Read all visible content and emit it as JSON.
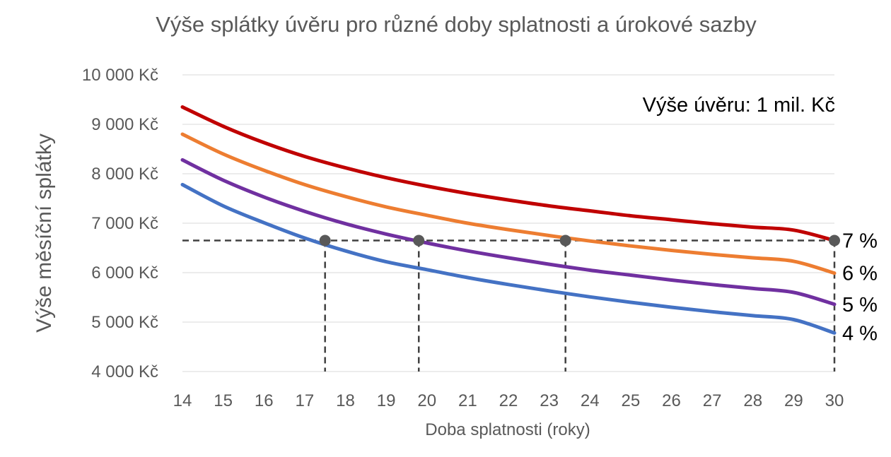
{
  "chart_data": {
    "type": "line",
    "title": "Výše splátky úvěru pro různé doby splatnosti a úrokové sazby",
    "xlabel": "Doba splatnosti (roky)",
    "ylabel": "Výše měsíční splátky",
    "xlim": [
      14,
      30
    ],
    "ylim": [
      4000,
      10000
    ],
    "x_ticks": [
      "14",
      "15",
      "16",
      "17",
      "18",
      "19",
      "20",
      "21",
      "22",
      "23",
      "24",
      "25",
      "26",
      "27",
      "28",
      "29",
      "30"
    ],
    "y_ticks": [
      "4 000 Kč",
      "5 000 Kč",
      "6 000 Kč",
      "7 000 Kč",
      "8 000 Kč",
      "9 000 Kč",
      "10 000 Kč"
    ],
    "grid": true,
    "annotation": "Výše úvěru: 1 mil. Kč",
    "x": [
      14,
      15,
      16,
      17,
      18,
      19,
      20,
      21,
      22,
      23,
      24,
      25,
      26,
      27,
      28,
      29,
      30
    ],
    "series": [
      {
        "name": "7 %",
        "color": "#c00000",
        "values": [
          9350,
          8960,
          8630,
          8350,
          8120,
          7920,
          7750,
          7600,
          7470,
          7350,
          7250,
          7150,
          7070,
          6990,
          6920,
          6860,
          6650
        ]
      },
      {
        "name": "6 %",
        "color": "#ed7d31",
        "values": [
          8800,
          8400,
          8070,
          7780,
          7540,
          7330,
          7160,
          7000,
          6870,
          6750,
          6640,
          6540,
          6450,
          6370,
          6300,
          6230,
          5990
        ]
      },
      {
        "name": "5 %",
        "color": "#7030a0",
        "values": [
          8280,
          7870,
          7530,
          7240,
          6990,
          6780,
          6600,
          6440,
          6300,
          6170,
          6050,
          5950,
          5850,
          5760,
          5680,
          5600,
          5360
        ]
      },
      {
        "name": "4 %",
        "color": "#4472c4",
        "values": [
          7780,
          7350,
          7010,
          6700,
          6440,
          6220,
          6060,
          5900,
          5760,
          5630,
          5510,
          5400,
          5300,
          5210,
          5130,
          5050,
          4780
        ]
      }
    ],
    "reference_line": {
      "y": 6650
    },
    "marked_points": [
      {
        "x": 17.5,
        "y": 6650
      },
      {
        "x": 19.8,
        "y": 6650
      },
      {
        "x": 23.4,
        "y": 6650
      },
      {
        "x": 30,
        "y": 6650
      }
    ]
  }
}
